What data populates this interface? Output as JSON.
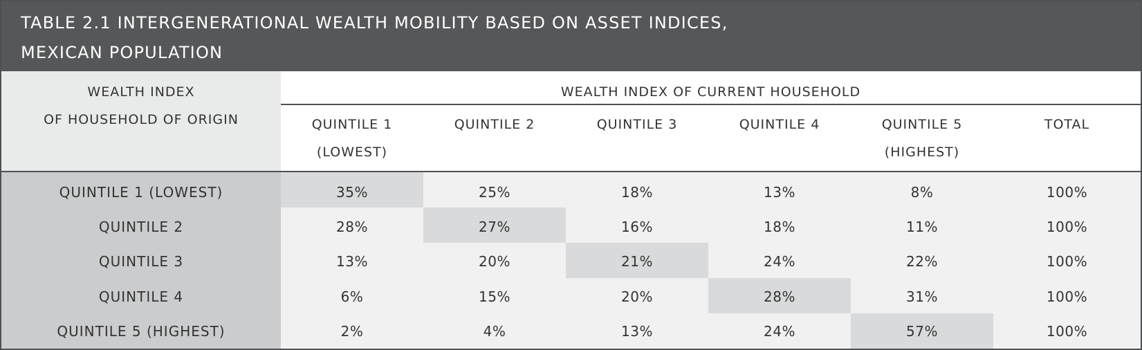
{
  "title": {
    "line1": "TABLE 2.1   INTERGENERATIONAL WEALTH MOBILITY BASED ON ASSET INDICES,",
    "line2": "MEXICAN POPULATION"
  },
  "header": {
    "origin_line1": "WEALTH INDEX",
    "origin_line2": "OF HOUSEHOLD OF ORIGIN",
    "current_group": "WEALTH INDEX OF CURRENT HOUSEHOLD",
    "columns": [
      {
        "line1": "QUINTILE 1",
        "line2": "(LOWEST)"
      },
      {
        "line1": "QUINTILE 2",
        "line2": ""
      },
      {
        "line1": "QUINTILE 3",
        "line2": ""
      },
      {
        "line1": "QUINTILE 4",
        "line2": ""
      },
      {
        "line1": "QUINTILE 5",
        "line2": "(HIGHEST)"
      },
      {
        "line1": "TOTAL",
        "line2": ""
      }
    ]
  },
  "rows": [
    {
      "label": "QUINTILE 1 (LOWEST)",
      "values": [
        "35%",
        "25%",
        "18%",
        "13%",
        "8%",
        "100%"
      ]
    },
    {
      "label": "QUINTILE 2",
      "values": [
        "28%",
        "27%",
        "16%",
        "18%",
        "11%",
        "100%"
      ]
    },
    {
      "label": "QUINTILE 3",
      "values": [
        "13%",
        "20%",
        "21%",
        "24%",
        "22%",
        "100%"
      ]
    },
    {
      "label": "QUINTILE 4",
      "values": [
        "6%",
        "15%",
        "20%",
        "28%",
        "31%",
        "100%"
      ]
    },
    {
      "label": "QUINTILE 5 (HIGHEST)",
      "values": [
        "2%",
        "4%",
        "13%",
        "24%",
        "57%",
        "100%"
      ]
    }
  ],
  "colors": {
    "title_bar": "#565759",
    "diagonal_highlight": "#d9dadb",
    "origin_column": "#cbcccd"
  }
}
